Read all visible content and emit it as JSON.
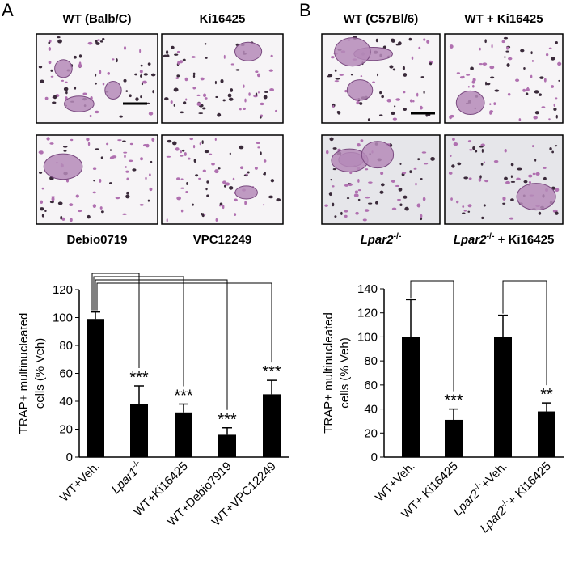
{
  "panels": [
    {
      "label": "A",
      "images": [
        "WT (Balb/C)",
        "Ki16425",
        "Debio0719",
        "VPC12249"
      ]
    },
    {
      "label": "B",
      "images": [
        "WT (C57Bl/6)",
        "WT + Ki16425",
        "Lpar2-/-",
        "Lpar2-/- + Ki16425"
      ]
    }
  ],
  "chart_data": [
    {
      "type": "bar",
      "y_label": [
        "TRAP+ multinucleated",
        "cells (% Veh)"
      ],
      "categories": [
        "WT+Veh.",
        "Lpar1-/-",
        "WT+Ki16425",
        "WT+Debio7919",
        "WT+VPC12249"
      ],
      "values": [
        99,
        38,
        32,
        16,
        45
      ],
      "errors": [
        5,
        13,
        6,
        5,
        10
      ],
      "value_labels": [
        null,
        "***",
        "***",
        "***",
        "***"
      ],
      "comparisons": [
        [
          0,
          1
        ],
        [
          0,
          2
        ],
        [
          0,
          3
        ],
        [
          0,
          4
        ]
      ],
      "color": "#000000",
      "ylim": [
        0,
        120
      ],
      "yticks": [
        0,
        20,
        40,
        60,
        80,
        100,
        120
      ]
    },
    {
      "type": "bar",
      "y_label": [
        "TRAP+ multinucleated",
        "cells (% Veh)"
      ],
      "categories": [
        "WT+Veh.",
        "WT+ Ki16425",
        "Lpar2-/-+Veh.",
        "Lpar2-/-+ Ki16425"
      ],
      "values": [
        100,
        31,
        100,
        38
      ],
      "errors": [
        31,
        9,
        18,
        7
      ],
      "value_labels": [
        null,
        "***",
        null,
        "**"
      ],
      "comparisons": [
        [
          0,
          1
        ],
        [
          2,
          3
        ]
      ],
      "color": "#000000",
      "ylim": [
        0,
        140
      ],
      "yticks": [
        0,
        20,
        40,
        60,
        80,
        100,
        120,
        140
      ]
    }
  ]
}
